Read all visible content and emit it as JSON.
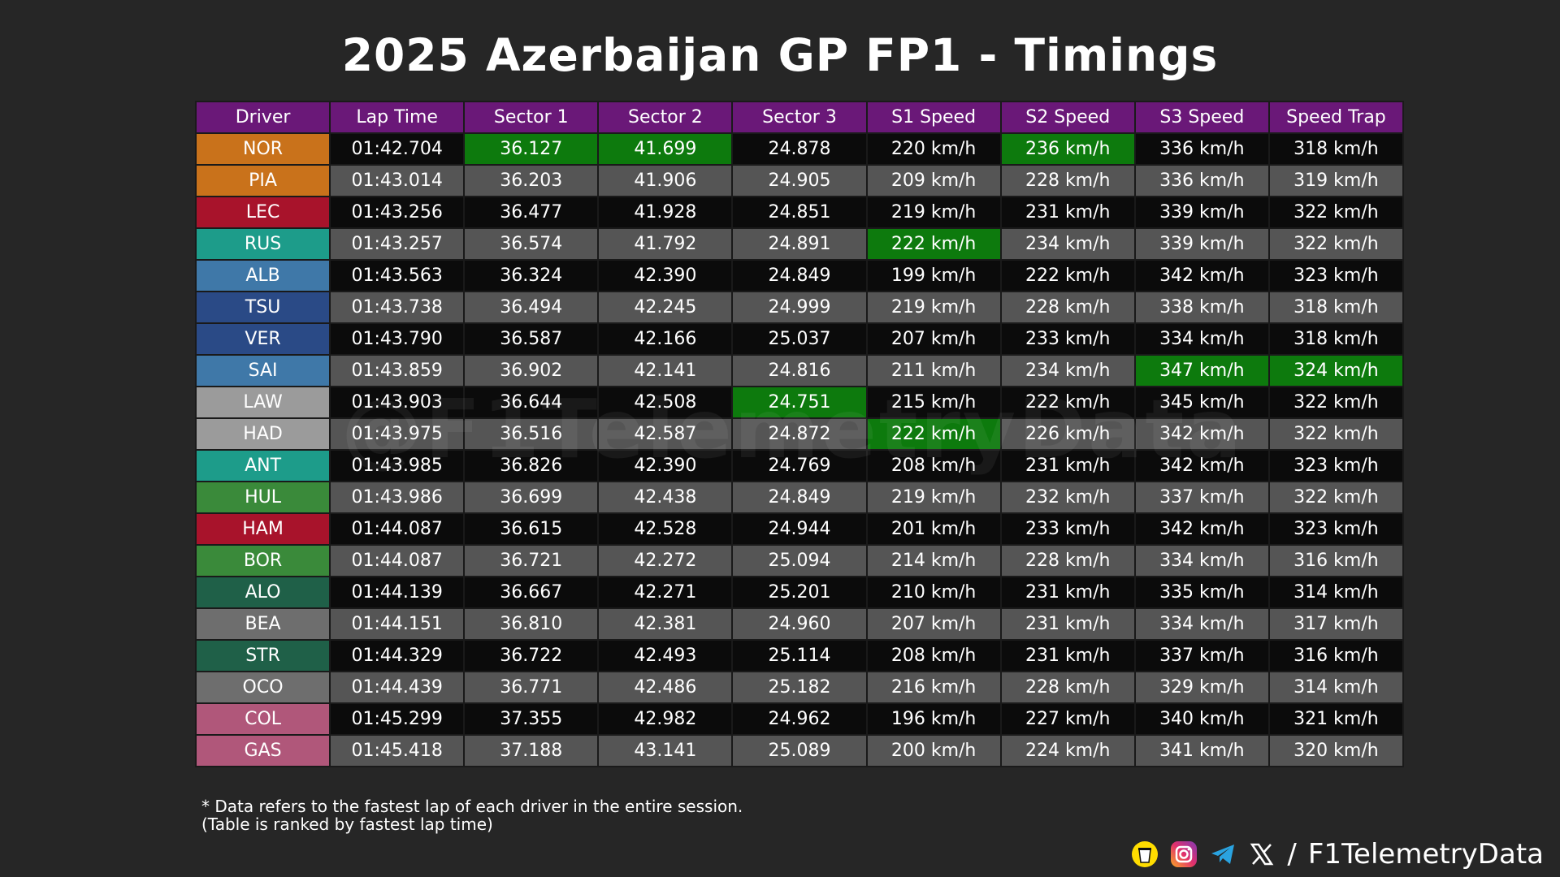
{
  "title": "2025 Azerbaijan GP FP1 - Timings",
  "watermark": "@F1TelemetryData",
  "notes": [
    "* Data refers to the fastest lap of each driver in the entire session.",
    "(Table is ranked by fastest lap time)"
  ],
  "footer": {
    "separator": "/",
    "handle": "F1TelemetryData",
    "icons": [
      "bmc-cup-icon",
      "instagram-icon",
      "telegram-icon",
      "x-icon"
    ]
  },
  "colors": {
    "header": "#6a1878",
    "best": "#0d7a0d",
    "row_dark": "#0b0b0b",
    "row_light": "#555555"
  },
  "chart_data": {
    "type": "table",
    "title": "2025 Azerbaijan GP FP1 - Timings",
    "columns": [
      "Driver",
      "Lap Time",
      "Sector 1",
      "Sector 2",
      "Sector 3",
      "S1 Speed",
      "S2 Speed",
      "S3 Speed",
      "Speed Trap"
    ],
    "rows": [
      {
        "driver": "NOR",
        "color": "#c9721b",
        "cells": [
          "01:42.704",
          "36.127",
          "41.699",
          "24.878",
          "220 km/h",
          "236 km/h",
          "336 km/h",
          "318 km/h"
        ],
        "best": [
          1,
          2,
          5
        ]
      },
      {
        "driver": "PIA",
        "color": "#c9721b",
        "cells": [
          "01:43.014",
          "36.203",
          "41.906",
          "24.905",
          "209 km/h",
          "228 km/h",
          "336 km/h",
          "319 km/h"
        ],
        "best": []
      },
      {
        "driver": "LEC",
        "color": "#a8132b",
        "cells": [
          "01:43.256",
          "36.477",
          "41.928",
          "24.851",
          "219 km/h",
          "231 km/h",
          "339 km/h",
          "322 km/h"
        ],
        "best": []
      },
      {
        "driver": "RUS",
        "color": "#1d9c8a",
        "cells": [
          "01:43.257",
          "36.574",
          "41.792",
          "24.891",
          "222 km/h",
          "234 km/h",
          "339 km/h",
          "322 km/h"
        ],
        "best": [
          4
        ]
      },
      {
        "driver": "ALB",
        "color": "#3f78a8",
        "cells": [
          "01:43.563",
          "36.324",
          "42.390",
          "24.849",
          "199 km/h",
          "222 km/h",
          "342 km/h",
          "323 km/h"
        ],
        "best": []
      },
      {
        "driver": "TSU",
        "color": "#2a4a86",
        "cells": [
          "01:43.738",
          "36.494",
          "42.245",
          "24.999",
          "219 km/h",
          "228 km/h",
          "338 km/h",
          "318 km/h"
        ],
        "best": []
      },
      {
        "driver": "VER",
        "color": "#2a4a86",
        "cells": [
          "01:43.790",
          "36.587",
          "42.166",
          "25.037",
          "207 km/h",
          "233 km/h",
          "334 km/h",
          "318 km/h"
        ],
        "best": []
      },
      {
        "driver": "SAI",
        "color": "#3f78a8",
        "cells": [
          "01:43.859",
          "36.902",
          "42.141",
          "24.816",
          "211 km/h",
          "234 km/h",
          "347 km/h",
          "324 km/h"
        ],
        "best": [
          6,
          7
        ]
      },
      {
        "driver": "LAW",
        "color": "#9b9b9b",
        "cells": [
          "01:43.903",
          "36.644",
          "42.508",
          "24.751",
          "215 km/h",
          "222 km/h",
          "345 km/h",
          "322 km/h"
        ],
        "best": [
          3
        ]
      },
      {
        "driver": "HAD",
        "color": "#9b9b9b",
        "cells": [
          "01:43.975",
          "36.516",
          "42.587",
          "24.872",
          "222 km/h",
          "226 km/h",
          "342 km/h",
          "322 km/h"
        ],
        "best": [
          4
        ]
      },
      {
        "driver": "ANT",
        "color": "#1d9c8a",
        "cells": [
          "01:43.985",
          "36.826",
          "42.390",
          "24.769",
          "208 km/h",
          "231 km/h",
          "342 km/h",
          "323 km/h"
        ],
        "best": []
      },
      {
        "driver": "HUL",
        "color": "#3a8a3a",
        "cells": [
          "01:43.986",
          "36.699",
          "42.438",
          "24.849",
          "219 km/h",
          "232 km/h",
          "337 km/h",
          "322 km/h"
        ],
        "best": []
      },
      {
        "driver": "HAM",
        "color": "#a8132b",
        "cells": [
          "01:44.087",
          "36.615",
          "42.528",
          "24.944",
          "201 km/h",
          "233 km/h",
          "342 km/h",
          "323 km/h"
        ],
        "best": []
      },
      {
        "driver": "BOR",
        "color": "#3a8a3a",
        "cells": [
          "01:44.087",
          "36.721",
          "42.272",
          "25.094",
          "214 km/h",
          "228 km/h",
          "334 km/h",
          "316 km/h"
        ],
        "best": []
      },
      {
        "driver": "ALO",
        "color": "#1f6048",
        "cells": [
          "01:44.139",
          "36.667",
          "42.271",
          "25.201",
          "210 km/h",
          "231 km/h",
          "335 km/h",
          "314 km/h"
        ],
        "best": []
      },
      {
        "driver": "BEA",
        "color": "#6e6e6e",
        "cells": [
          "01:44.151",
          "36.810",
          "42.381",
          "24.960",
          "207 km/h",
          "231 km/h",
          "334 km/h",
          "317 km/h"
        ],
        "best": []
      },
      {
        "driver": "STR",
        "color": "#1f6048",
        "cells": [
          "01:44.329",
          "36.722",
          "42.493",
          "25.114",
          "208 km/h",
          "231 km/h",
          "337 km/h",
          "316 km/h"
        ],
        "best": []
      },
      {
        "driver": "OCO",
        "color": "#6e6e6e",
        "cells": [
          "01:44.439",
          "36.771",
          "42.486",
          "25.182",
          "216 km/h",
          "228 km/h",
          "329 km/h",
          "314 km/h"
        ],
        "best": []
      },
      {
        "driver": "COL",
        "color": "#b0577a",
        "cells": [
          "01:45.299",
          "37.355",
          "42.982",
          "24.962",
          "196 km/h",
          "227 km/h",
          "340 km/h",
          "321 km/h"
        ],
        "best": []
      },
      {
        "driver": "GAS",
        "color": "#b0577a",
        "cells": [
          "01:45.418",
          "37.188",
          "43.141",
          "25.089",
          "200 km/h",
          "224 km/h",
          "341 km/h",
          "320 km/h"
        ],
        "best": []
      }
    ]
  }
}
